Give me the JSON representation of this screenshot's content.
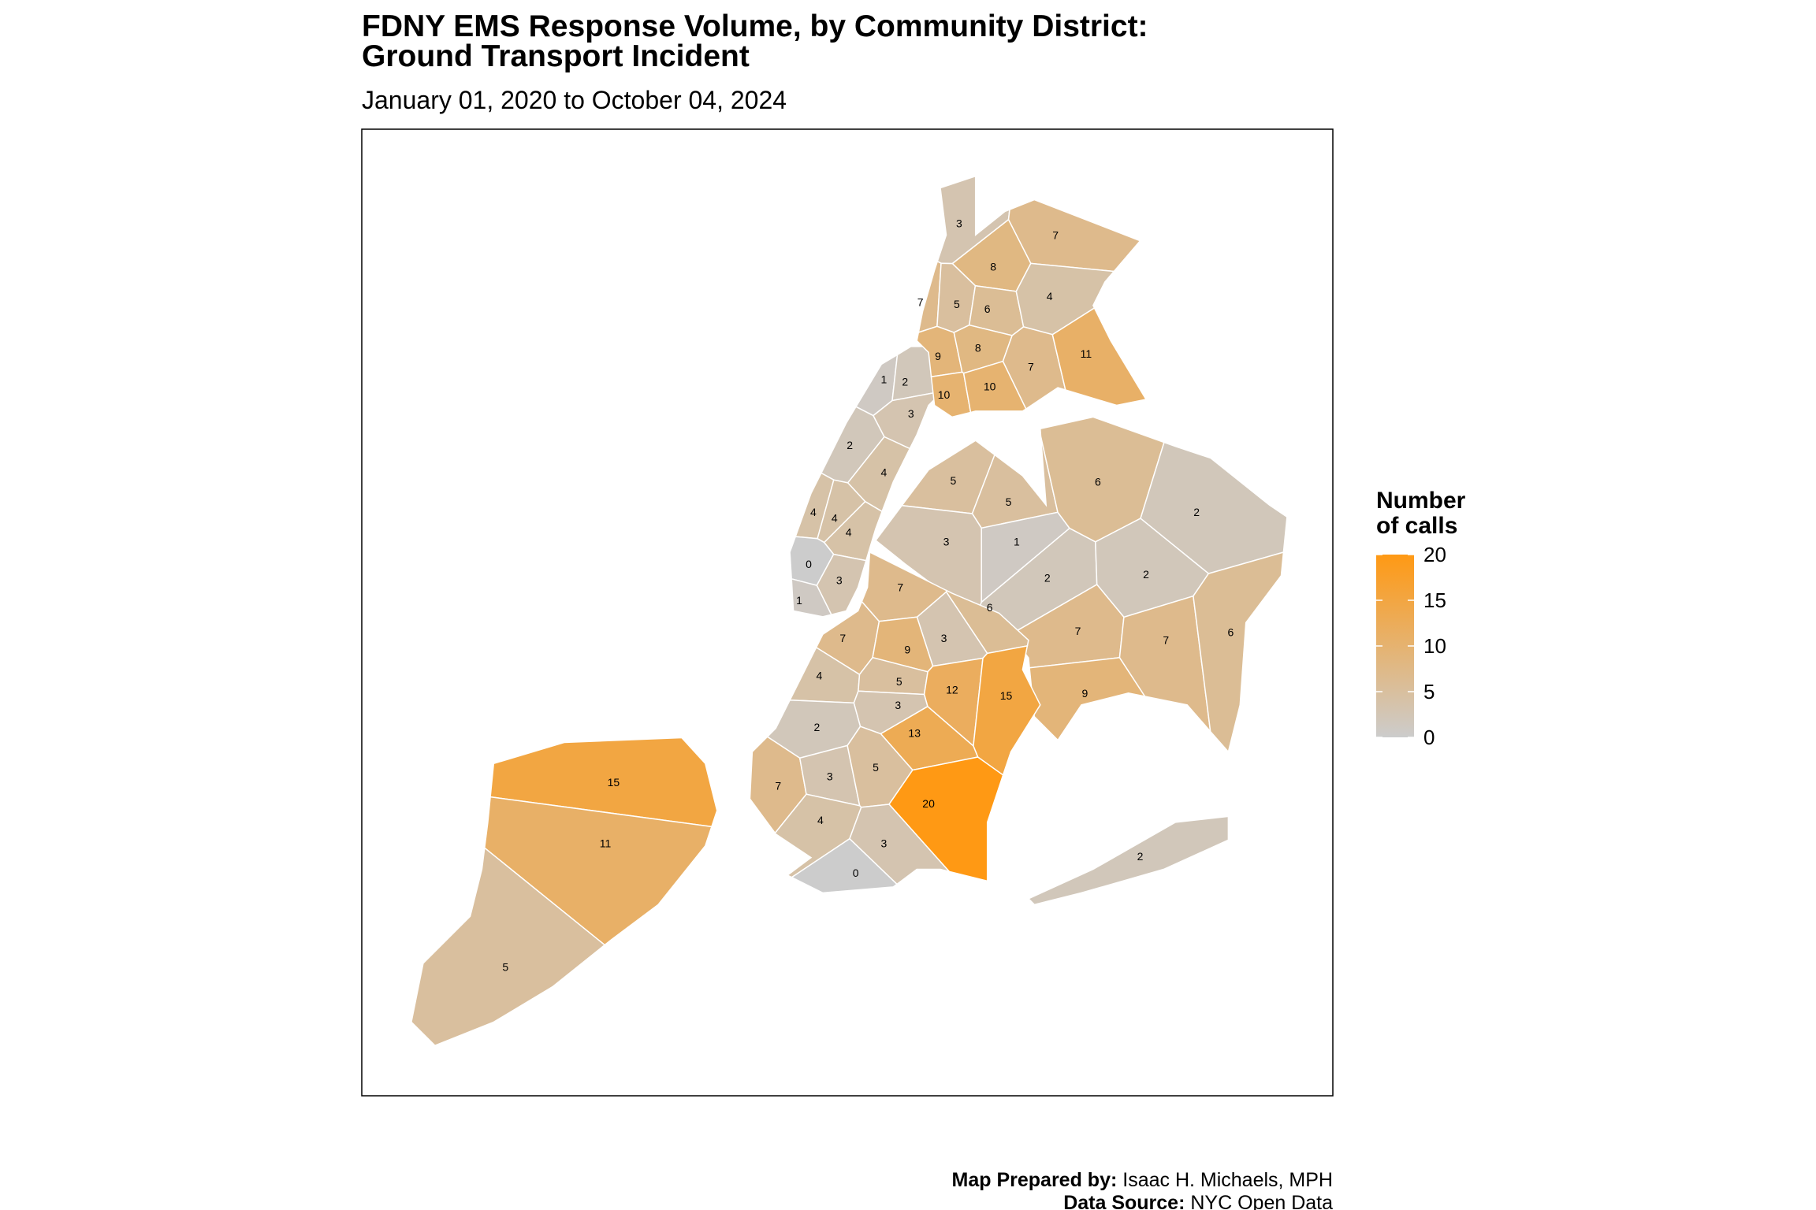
{
  "chart_data": {
    "type": "choropleth",
    "title": [
      "FDNY EMS Response Volume, by Community District:",
      "Ground Transport Incident"
    ],
    "subtitle": "January 01, 2020 to October 04, 2024",
    "legend_title": [
      "Number",
      "of calls"
    ],
    "clim": [
      0,
      20
    ],
    "legend_ticks": [
      0,
      5,
      10,
      15,
      20
    ],
    "color_low": "#cccccc",
    "color_high": "#ff9914",
    "values": [
      1,
      2,
      3,
      2,
      4,
      4,
      4,
      4,
      0,
      3,
      1,
      3,
      7,
      8,
      7,
      5,
      6,
      4,
      9,
      8,
      7,
      11,
      10,
      10,
      5,
      5,
      3,
      1,
      2,
      6,
      2,
      2,
      7,
      7,
      6,
      9,
      2,
      7,
      6,
      3,
      7,
      9,
      4,
      5,
      12,
      15,
      3,
      2,
      13,
      7,
      3,
      5,
      20,
      4,
      3,
      0,
      15,
      11,
      5
    ],
    "credits": [
      {
        "label": "Map Prepared by:",
        "text": "Isaac H. Michaels, MPH"
      },
      {
        "label": "Data Source:",
        "text": "NYC Open Data"
      }
    ]
  }
}
